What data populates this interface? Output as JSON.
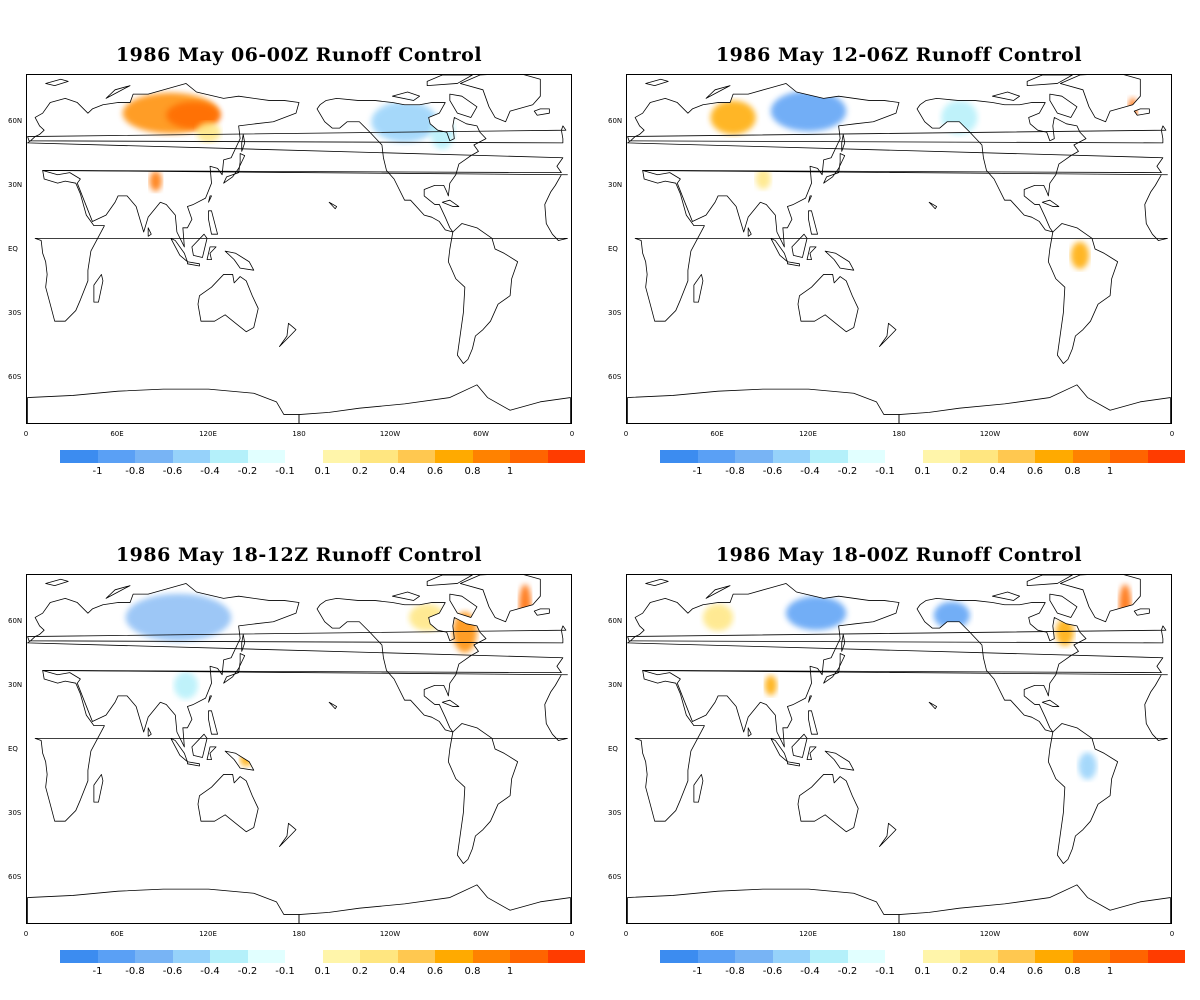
{
  "panels": [
    {
      "title": "1986 May 06-00Z Runoff Control",
      "anomalies": [
        {
          "region": "siberia",
          "color": "#ff8c00",
          "lon": 95,
          "lat": 64,
          "rx": 32,
          "ry": 6
        },
        {
          "region": "siberia-core",
          "color": "#ff6a00",
          "lon": 110,
          "lat": 63,
          "rx": 18,
          "ry": 4
        },
        {
          "region": "north-america",
          "color": "#96d2fa",
          "lon": -110,
          "lat": 60,
          "rx": 22,
          "ry": 6
        },
        {
          "region": "hudson",
          "color": "#b4f0fa",
          "lon": -85,
          "lat": 55,
          "rx": 8,
          "ry": 5
        },
        {
          "region": "tibet",
          "color": "#ff7400",
          "lon": 85,
          "lat": 32,
          "rx": 4,
          "ry": 3
        },
        {
          "region": "east-asia",
          "color": "#ffe680",
          "lon": 120,
          "lat": 55,
          "rx": 8,
          "ry": 3
        }
      ]
    },
    {
      "title": "1986 May 12-06Z Runoff Control",
      "anomalies": [
        {
          "region": "western-siberia",
          "color": "#ffaa00",
          "lon": 70,
          "lat": 62,
          "rx": 15,
          "ry": 5
        },
        {
          "region": "eastern-siberia",
          "color": "#5aa0f5",
          "lon": 120,
          "lat": 65,
          "rx": 25,
          "ry": 6
        },
        {
          "region": "alaska",
          "color": "#b4f0fa",
          "lon": -140,
          "lat": 62,
          "rx": 12,
          "ry": 5
        },
        {
          "region": "amazon",
          "color": "#ffaa00",
          "lon": -60,
          "lat": -3,
          "rx": 6,
          "ry": 4
        },
        {
          "region": "tibet",
          "color": "#ffe680",
          "lon": 90,
          "lat": 33,
          "rx": 5,
          "ry": 3
        },
        {
          "region": "greenland",
          "color": "#ff6a00",
          "lon": -25,
          "lat": 65,
          "rx": 3,
          "ry": 4
        }
      ]
    },
    {
      "title": "1986 May 18-12Z Runoff Control",
      "anomalies": [
        {
          "region": "siberia",
          "color": "#8cbef5",
          "lon": 100,
          "lat": 62,
          "rx": 35,
          "ry": 7
        },
        {
          "region": "quebec",
          "color": "#ff8c00",
          "lon": -70,
          "lat": 55,
          "rx": 8,
          "ry": 6
        },
        {
          "region": "greenland-east",
          "color": "#ff6a00",
          "lon": -30,
          "lat": 68,
          "rx": 4,
          "ry": 6
        },
        {
          "region": "canada",
          "color": "#ffe680",
          "lon": -95,
          "lat": 62,
          "rx": 12,
          "ry": 4
        },
        {
          "region": "china",
          "color": "#b4f0fa",
          "lon": 105,
          "lat": 30,
          "rx": 8,
          "ry": 4
        },
        {
          "region": "new-guinea",
          "color": "#ffaa00",
          "lon": 145,
          "lat": -5,
          "rx": 4,
          "ry": 2
        }
      ]
    },
    {
      "title": "1986 May 18-00Z Runoff Control",
      "anomalies": [
        {
          "region": "western-siberia",
          "color": "#ffe680",
          "lon": 60,
          "lat": 62,
          "rx": 10,
          "ry": 4
        },
        {
          "region": "eastern-siberia",
          "color": "#5aa0f5",
          "lon": 125,
          "lat": 64,
          "rx": 20,
          "ry": 5
        },
        {
          "region": "alaska",
          "color": "#5aa0f5",
          "lon": -145,
          "lat": 63,
          "rx": 12,
          "ry": 4
        },
        {
          "region": "greenland-east",
          "color": "#ff6a00",
          "lon": -30,
          "lat": 68,
          "rx": 4,
          "ry": 6
        },
        {
          "region": "quebec",
          "color": "#ffaa00",
          "lon": -70,
          "lat": 55,
          "rx": 6,
          "ry": 4
        },
        {
          "region": "tibet",
          "color": "#ffaa00",
          "lon": 95,
          "lat": 30,
          "rx": 4,
          "ry": 3
        },
        {
          "region": "amazon",
          "color": "#96d2fa",
          "lon": -55,
          "lat": -8,
          "rx": 6,
          "ry": 4
        }
      ]
    }
  ],
  "lat_labels": [
    "60N",
    "30N",
    "EQ",
    "30S",
    "60S"
  ],
  "lon_labels": [
    "0",
    "60E",
    "120E",
    "180",
    "120W",
    "60W",
    "0"
  ],
  "colorbar": {
    "ticks": [
      "-1",
      "-0.8",
      "-0.6",
      "-0.4",
      "-0.2",
      "-0.1",
      "0.1",
      "0.2",
      "0.4",
      "0.6",
      "0.8",
      "1"
    ],
    "colors": [
      "#3c8cf0",
      "#5aa0f5",
      "#78b4f5",
      "#96d2fa",
      "#b4f0fa",
      "#e1ffff",
      "#ffffff",
      "#fff5aa",
      "#ffe680",
      "#ffc850",
      "#ffaa00",
      "#ff8200",
      "#ff6400",
      "#ff3c00"
    ]
  },
  "colors": {
    "land_outline": "#000000",
    "background": "#ffffff"
  }
}
